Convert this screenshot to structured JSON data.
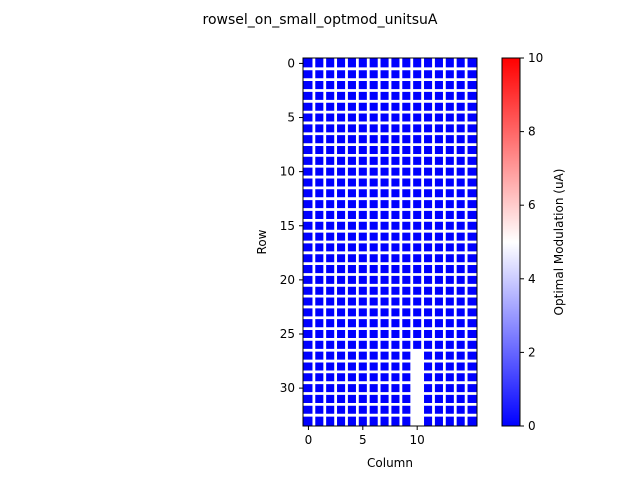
{
  "chart_data": {
    "type": "heatmap",
    "title": "rowsel_on_small_optmod_unitsuA",
    "xlabel": "Column",
    "ylabel": "Row",
    "rows": 34,
    "cols": 16,
    "x_ticks": [
      0,
      5,
      10
    ],
    "y_ticks": [
      0,
      5,
      10,
      15,
      20,
      25,
      30
    ],
    "colorbar": {
      "label": "Optimal Modulation (uA)",
      "range": [
        0,
        10
      ],
      "ticks": [
        0,
        2,
        4,
        6,
        8,
        10
      ],
      "colormap": "bwr",
      "colors": [
        "#0000ff",
        "#ffffff",
        "#ff0000"
      ]
    },
    "cell_value": 0,
    "white_cells": [
      [
        27,
        10
      ],
      [
        28,
        10
      ],
      [
        29,
        10
      ],
      [
        30,
        10
      ],
      [
        31,
        10
      ],
      [
        32,
        10
      ],
      [
        33,
        10
      ]
    ],
    "grid_color": "#ffffff"
  }
}
